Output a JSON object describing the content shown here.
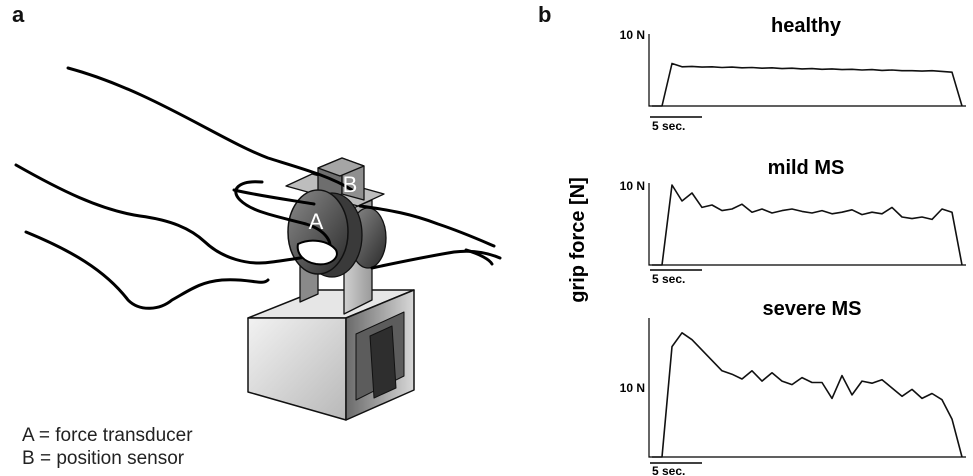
{
  "panels": {
    "a": {
      "label": "a",
      "device_labels": {
        "A": "A",
        "B": "B"
      },
      "legend": [
        "A = force transducer",
        "B = position sensor"
      ]
    },
    "b": {
      "label": "b",
      "ylabel": "grip force [N]"
    }
  },
  "chart_data": [
    {
      "type": "line",
      "title": "healthy",
      "ytick_label": "10 N",
      "scale_bar_label": "5 sec.",
      "series": [
        {
          "values": [
            0.0,
            0.0,
            5.9,
            5.45,
            5.5,
            5.4,
            5.45,
            5.35,
            5.4,
            5.3,
            5.35,
            5.25,
            5.3,
            5.2,
            5.25,
            5.15,
            5.2,
            5.1,
            5.15,
            5.05,
            5.1,
            5.0,
            5.05,
            4.95,
            5.0,
            4.9,
            4.9,
            4.85,
            4.9,
            4.8,
            4.7,
            0.0
          ]
        }
      ]
    },
    {
      "type": "line",
      "title": "mild MS",
      "ytick_label": "10 N",
      "scale_bar_label": "5 sec.",
      "series": [
        {
          "values": [
            0.0,
            0.0,
            10.0,
            8.0,
            9.0,
            7.2,
            7.5,
            6.8,
            7.0,
            7.6,
            6.6,
            7.0,
            6.5,
            6.8,
            7.0,
            6.7,
            6.5,
            6.8,
            6.4,
            6.6,
            6.9,
            6.3,
            6.6,
            6.4,
            7.2,
            6.0,
            5.8,
            6.0,
            5.7,
            7.0,
            6.6,
            0.0
          ]
        }
      ]
    },
    {
      "type": "line",
      "title": "severe MS",
      "ytick_label": "10 N",
      "scale_bar_label": "5 sec.",
      "series": [
        {
          "values": [
            0.0,
            0.0,
            16.0,
            18.0,
            17.0,
            15.5,
            14.0,
            12.5,
            12.0,
            11.3,
            12.5,
            11.0,
            12.2,
            11.0,
            10.5,
            11.5,
            10.8,
            10.8,
            8.5,
            11.8,
            9.0,
            11.0,
            10.7,
            11.2,
            10.0,
            8.8,
            9.8,
            8.5,
            9.2,
            8.3,
            5.5,
            0.0
          ]
        }
      ]
    }
  ]
}
